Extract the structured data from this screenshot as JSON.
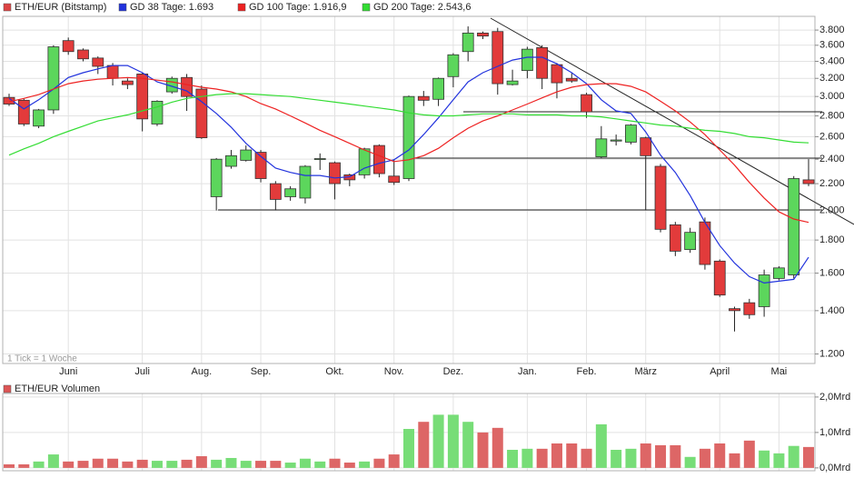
{
  "chart_data": [
    {
      "type": "candlestick",
      "annotation": "1 Tick = 1 Woche",
      "categories": [
        null,
        null,
        null,
        null,
        "Juni",
        null,
        null,
        null,
        null,
        "Juli",
        null,
        null,
        null,
        "Aug.",
        null,
        null,
        null,
        "Sep.",
        null,
        null,
        null,
        null,
        "Okt.",
        null,
        null,
        null,
        "Nov.",
        null,
        null,
        null,
        "Dez.",
        null,
        null,
        null,
        null,
        "Jan.",
        null,
        null,
        null,
        "Feb.",
        null,
        null,
        null,
        "März",
        null,
        null,
        null,
        null,
        "April",
        null,
        null,
        null,
        "Mai",
        null,
        null
      ],
      "log_scale": true,
      "grid": true,
      "ylim": [
        1160,
        3990
      ],
      "yticks": [
        {
          "value": 1200,
          "label": "1.200"
        },
        {
          "value": 1400,
          "label": "1.400"
        },
        {
          "value": 1600,
          "label": "1.600"
        },
        {
          "value": 1800,
          "label": "1.800"
        },
        {
          "value": 2000,
          "label": "2.000"
        },
        {
          "value": 2200,
          "label": "2.200"
        },
        {
          "value": 2400,
          "label": "2.400"
        },
        {
          "value": 2600,
          "label": "2.600"
        },
        {
          "value": 2800,
          "label": "2.800"
        },
        {
          "value": 3000,
          "label": "3.000"
        },
        {
          "value": 3200,
          "label": "3.200"
        },
        {
          "value": 3400,
          "label": "3.400"
        },
        {
          "value": 3600,
          "label": "3.600"
        },
        {
          "value": 3800,
          "label": "3.800"
        }
      ],
      "series": [
        {
          "name": "ETH/EUR (Bitstamp)",
          "color": "#dd4444",
          "up_color": "#5cd65c",
          "down_color": "#e23b3b",
          "open": [
            2990,
            2960,
            2700,
            2860,
            3660,
            3540,
            3440,
            3350,
            3170,
            3250,
            2720,
            3050,
            3210,
            3080,
            2100,
            2340,
            2390,
            2460,
            2200,
            2100,
            2090,
            2400,
            2370,
            2270,
            2270,
            2520,
            2260,
            2240,
            3000,
            2970,
            3220,
            3520,
            3760,
            3780,
            3130,
            3290,
            3570,
            3360,
            3200,
            3020,
            2420,
            2560,
            2550,
            2590,
            2340,
            1900,
            1740,
            1920,
            1670,
            1410,
            1440,
            1420,
            1570,
            1590,
            2230
          ],
          "high": [
            3030,
            2980,
            2870,
            3600,
            3700,
            3560,
            3460,
            3380,
            3200,
            3260,
            2960,
            3220,
            3250,
            3120,
            2410,
            2480,
            2520,
            2480,
            2220,
            2180,
            2350,
            2450,
            2380,
            2280,
            2500,
            2530,
            2400,
            3010,
            3060,
            3210,
            3500,
            3850,
            3780,
            3830,
            3300,
            3580,
            3600,
            3380,
            3260,
            3040,
            2700,
            2620,
            2720,
            2600,
            2360,
            1920,
            1880,
            1950,
            1680,
            1420,
            1460,
            1620,
            1640,
            2260,
            2400
          ],
          "low": [
            2900,
            2700,
            2680,
            2820,
            3480,
            3400,
            3250,
            3120,
            3080,
            2650,
            2700,
            3030,
            2850,
            2580,
            2000,
            2320,
            2380,
            2210,
            2000,
            2070,
            2050,
            2310,
            2080,
            2180,
            2240,
            2250,
            2190,
            2220,
            2900,
            2900,
            3100,
            3400,
            3680,
            3020,
            3120,
            3200,
            3080,
            2980,
            3150,
            2780,
            2410,
            2520,
            2530,
            2000,
            1850,
            1700,
            1720,
            1620,
            1470,
            1300,
            1360,
            1370,
            1560,
            1570,
            2180
          ],
          "close": [
            2920,
            2720,
            2860,
            3580,
            3520,
            3430,
            3340,
            3200,
            3130,
            2770,
            2950,
            3200,
            3000,
            2590,
            2400,
            2430,
            2480,
            2240,
            2080,
            2160,
            2340,
            2405,
            2200,
            2230,
            2490,
            2280,
            2210,
            3000,
            2960,
            3200,
            3480,
            3760,
            3720,
            3140,
            3170,
            3550,
            3200,
            3150,
            3170,
            2840,
            2580,
            2570,
            2710,
            2430,
            1870,
            1730,
            1850,
            1650,
            1480,
            1400,
            1380,
            1590,
            1630,
            2240,
            2200
          ]
        },
        {
          "name": "GD 38 Tage: 1.693",
          "color": "#2233dd",
          "values": [
            2980,
            2870,
            2965,
            3080,
            3210,
            3265,
            3310,
            3350,
            3350,
            3265,
            3160,
            3110,
            3060,
            2945,
            2825,
            2690,
            2540,
            2425,
            2325,
            2290,
            2265,
            2265,
            2245,
            2255,
            2325,
            2365,
            2395,
            2480,
            2620,
            2780,
            2965,
            3160,
            3265,
            3340,
            3415,
            3450,
            3450,
            3370,
            3265,
            3140,
            2965,
            2850,
            2825,
            2645,
            2435,
            2290,
            2110,
            1917,
            1765,
            1658,
            1580,
            1545,
            1555,
            1565,
            1693
          ]
        },
        {
          "name": "GD 100 Tage: 1.916,9",
          "color": "#ee2222",
          "values": [
            2945,
            2980,
            3020,
            3080,
            3140,
            3170,
            3190,
            3200,
            3210,
            3200,
            3180,
            3160,
            3130,
            3100,
            3080,
            3050,
            3000,
            2925,
            2870,
            2800,
            2730,
            2660,
            2600,
            2540,
            2480,
            2430,
            2380,
            2395,
            2430,
            2495,
            2590,
            2680,
            2750,
            2800,
            2860,
            2920,
            2985,
            3050,
            3100,
            3130,
            3140,
            3140,
            3110,
            3050,
            2950,
            2850,
            2740,
            2620,
            2480,
            2350,
            2210,
            2090,
            1990,
            1940,
            1916.9
          ]
        },
        {
          "name": "GD 200 Tage: 2.543,6",
          "color": "#33dd33",
          "values": [
            2435,
            2490,
            2540,
            2600,
            2650,
            2700,
            2750,
            2780,
            2810,
            2850,
            2890,
            2940,
            2980,
            3000,
            3020,
            3030,
            3030,
            3020,
            3010,
            3000,
            2980,
            2960,
            2940,
            2920,
            2900,
            2880,
            2860,
            2830,
            2810,
            2800,
            2800,
            2810,
            2820,
            2820,
            2820,
            2810,
            2810,
            2810,
            2800,
            2800,
            2790,
            2770,
            2750,
            2730,
            2710,
            2700,
            2680,
            2660,
            2650,
            2630,
            2600,
            2590,
            2570,
            2550,
            2543.6
          ]
        }
      ]
    },
    {
      "type": "bar",
      "ylim": [
        -0.08,
        2.1
      ],
      "yticks": [
        {
          "value": 0,
          "label": "0,0Mrd"
        },
        {
          "value": 1,
          "label": "1,0Mrd"
        },
        {
          "value": 2,
          "label": "2,0Mrd"
        }
      ],
      "grid": true,
      "series": [
        {
          "name": "ETH/EUR Volumen",
          "color": "#dd5555",
          "up_color": "#77dd77",
          "down_color": "#dd6666",
          "values": [
            0.1,
            0.1,
            0.18,
            0.38,
            0.18,
            0.2,
            0.26,
            0.26,
            0.18,
            0.23,
            0.2,
            0.2,
            0.23,
            0.33,
            0.23,
            0.28,
            0.2,
            0.2,
            0.2,
            0.15,
            0.26,
            0.18,
            0.26,
            0.15,
            0.18,
            0.26,
            0.38,
            1.1,
            1.3,
            1.5,
            1.5,
            1.3,
            1.0,
            1.13,
            0.51,
            0.54,
            0.54,
            0.69,
            0.69,
            0.54,
            1.23,
            0.51,
            0.54,
            0.69,
            0.64,
            0.64,
            0.31,
            0.54,
            0.69,
            0.41,
            0.77,
            0.49,
            0.41,
            0.62,
            0.59
          ]
        }
      ]
    }
  ]
}
